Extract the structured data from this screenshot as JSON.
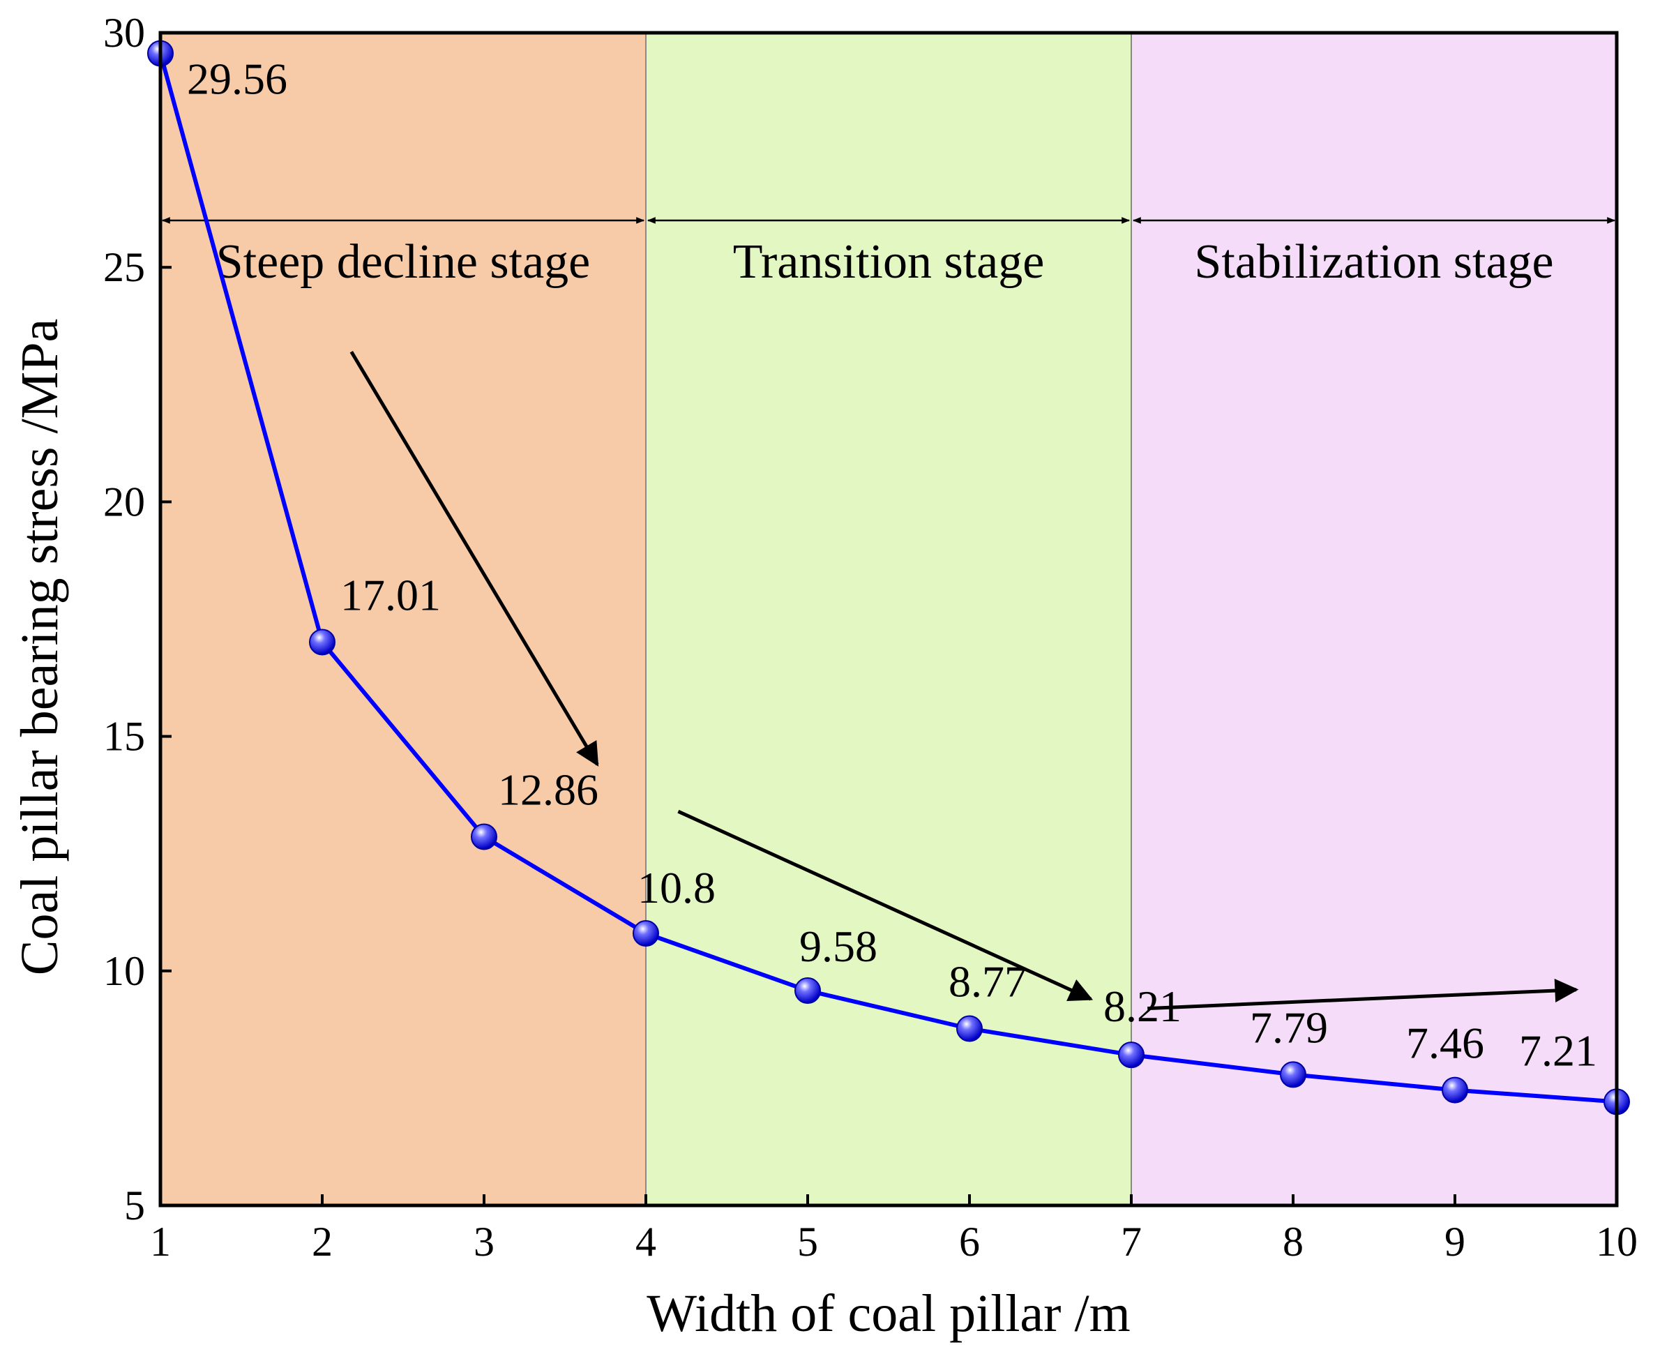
{
  "chart_data": {
    "type": "line",
    "title": "",
    "xlabel": "Width of coal pillar /m",
    "ylabel": "Coal pillar bearing stress /MPa",
    "xlim": [
      1,
      10
    ],
    "ylim": [
      5,
      30
    ],
    "x_ticks": [
      1,
      2,
      3,
      4,
      5,
      6,
      7,
      8,
      9,
      10
    ],
    "y_ticks": [
      5,
      10,
      15,
      20,
      25,
      30
    ],
    "grid": false,
    "legend": "none",
    "series": [
      {
        "name": "Coal pillar bearing stress",
        "color": "#0000ff",
        "x": [
          1,
          2,
          3,
          4,
          5,
          6,
          7,
          8,
          9,
          10
        ],
        "values": [
          29.56,
          17.01,
          12.86,
          10.8,
          9.58,
          8.77,
          8.21,
          7.79,
          7.46,
          7.21
        ],
        "labels": [
          "29.56",
          "17.01",
          "12.86",
          "10.8",
          "9.58",
          "8.77",
          "8.21",
          "7.79",
          "7.46",
          "7.21"
        ]
      }
    ],
    "stages": [
      {
        "label": "Steep decline stage",
        "x_start": 1,
        "x_end": 4,
        "color": "#f8cba8"
      },
      {
        "label": "Transition stage",
        "x_start": 4,
        "x_end": 7,
        "color": "#e3f7c3"
      },
      {
        "label": "Stabilization stage",
        "x_start": 7,
        "x_end": 10,
        "color": "#f5dcf8"
      }
    ],
    "stage_arrow_y": 26,
    "trend_arrows": [
      {
        "from": [
          2.18,
          23.2
        ],
        "to": [
          3.7,
          14.4
        ]
      },
      {
        "from": [
          4.2,
          13.4
        ],
        "to": [
          6.75,
          9.4
        ]
      },
      {
        "from": [
          7.1,
          9.2
        ],
        "to": [
          9.75,
          9.6
        ]
      }
    ]
  }
}
